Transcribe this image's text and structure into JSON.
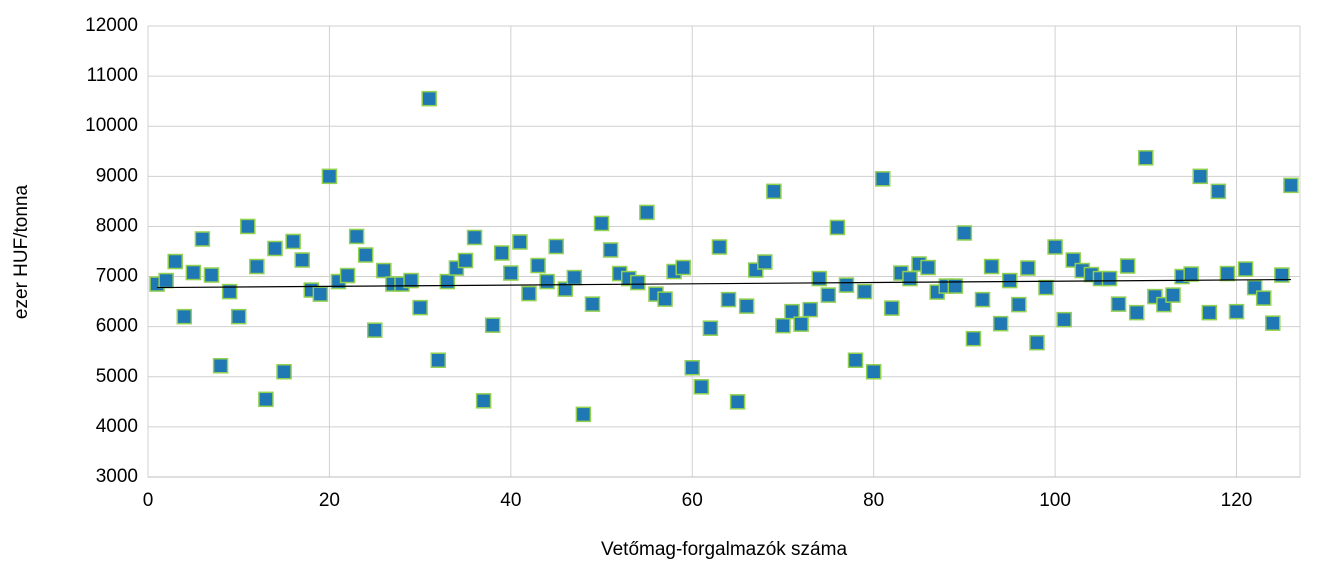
{
  "chart_data": {
    "type": "scatter",
    "x_label": "Vetőmag-forgalmazók száma",
    "y_label": "ezer HUF/tonna",
    "xlim": [
      0,
      127
    ],
    "xticks": [
      0,
      20,
      40,
      60,
      80,
      100,
      120
    ],
    "ylim": [
      3000,
      12000
    ],
    "yticks": [
      3000,
      4000,
      5000,
      6000,
      7000,
      8000,
      9000,
      10000,
      11000,
      12000
    ],
    "grid": true,
    "color": "#1f77b4",
    "edge_color": "#92d050",
    "x": [
      1,
      2,
      3,
      4,
      5,
      6,
      7,
      8,
      9,
      10,
      11,
      12,
      13,
      14,
      15,
      16,
      17,
      18,
      19,
      20,
      21,
      22,
      23,
      24,
      25,
      26,
      27,
      28,
      29,
      30,
      31,
      32,
      33,
      34,
      35,
      36,
      37,
      38,
      39,
      40,
      41,
      42,
      43,
      44,
      45,
      46,
      47,
      48,
      49,
      50,
      51,
      52,
      53,
      54,
      55,
      56,
      57,
      58,
      59,
      60,
      61,
      62,
      63,
      64,
      65,
      66,
      67,
      68,
      69,
      70,
      71,
      72,
      73,
      74,
      75,
      76,
      77,
      78,
      79,
      80,
      81,
      82,
      83,
      84,
      85,
      86,
      87,
      88,
      89,
      90,
      91,
      92,
      93,
      94,
      95,
      96,
      97,
      98,
      99,
      100,
      101,
      102,
      103,
      104,
      105,
      106,
      107,
      108,
      109,
      110,
      111,
      112,
      113,
      114,
      115,
      116,
      117,
      118,
      119,
      120,
      121,
      122,
      123,
      124,
      125,
      126
    ],
    "values": [
      6850,
      6920,
      7300,
      6200,
      7080,
      7750,
      7030,
      5220,
      6700,
      6200,
      8000,
      7200,
      4550,
      7560,
      5100,
      7700,
      7330,
      6730,
      6650,
      9000,
      6900,
      7020,
      7800,
      7430,
      5930,
      7120,
      6850,
      6850,
      6920,
      6380,
      10550,
      5330,
      6900,
      7170,
      7320,
      7780,
      4520,
      6030,
      7470,
      7070,
      7690,
      6660,
      7220,
      6900,
      7600,
      6750,
      6980,
      4250,
      6450,
      8060,
      7530,
      7060,
      6960,
      6880,
      8280,
      6650,
      6550,
      7100,
      7180,
      5180,
      4800,
      5970,
      7590,
      6540,
      4500,
      6410,
      7130,
      7290,
      8700,
      6020,
      6300,
      6050,
      6340,
      6960,
      6630,
      7980,
      6830,
      5330,
      6700,
      5100,
      8950,
      6370,
      7070,
      6960,
      7250,
      7180,
      6690,
      6810,
      6810,
      7870,
      5760,
      6540,
      7200,
      6060,
      6920,
      6440,
      7170,
      5680,
      6780,
      7590,
      6140,
      7330,
      7120,
      7040,
      6960,
      6960,
      6450,
      7210,
      6280,
      9370,
      6600,
      6440,
      6630,
      7000,
      7050,
      9000,
      6280,
      8700,
      7060,
      6300,
      7150,
      6780,
      6570,
      6070,
      7030,
      8820
    ],
    "trendline": {
      "x": [
        1,
        126
      ],
      "values": [
        6780,
        6940
      ],
      "color": "#000000"
    }
  }
}
